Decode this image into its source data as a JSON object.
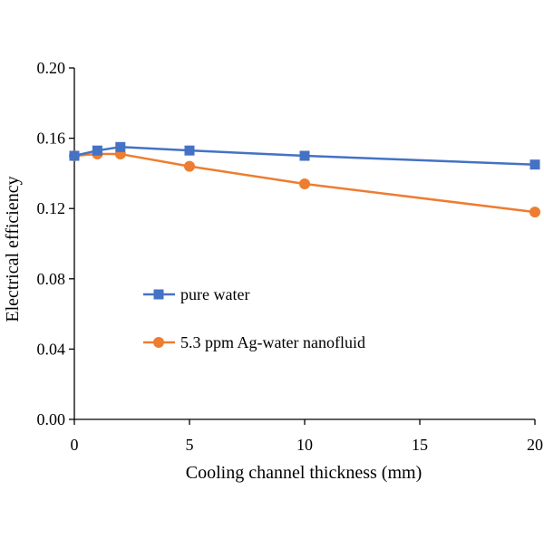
{
  "chart_data": {
    "type": "line",
    "xlabel": "Cooling channel thickness (mm)",
    "ylabel": "Electrical efficiency",
    "xlim": [
      0,
      20
    ],
    "ylim": [
      0,
      0.2
    ],
    "x_ticks": [
      "0",
      "5",
      "10",
      "15",
      "20"
    ],
    "y_ticks": [
      "0.00",
      "0.04",
      "0.08",
      "0.12",
      "0.16",
      "0.20"
    ],
    "grid": false,
    "legend_position": "center-left",
    "series": [
      {
        "name": "pure water",
        "color": "#4472C4",
        "marker": "square",
        "x": [
          0,
          1,
          2,
          5,
          10,
          20
        ],
        "y": [
          0.15,
          0.153,
          0.155,
          0.153,
          0.15,
          0.145
        ]
      },
      {
        "name": "5.3 ppm Ag-water nanofluid",
        "color": "#ED7D31",
        "marker": "circle",
        "x": [
          0,
          1,
          2,
          5,
          10,
          20
        ],
        "y": [
          0.15,
          0.151,
          0.151,
          0.144,
          0.134,
          0.118
        ]
      }
    ]
  }
}
